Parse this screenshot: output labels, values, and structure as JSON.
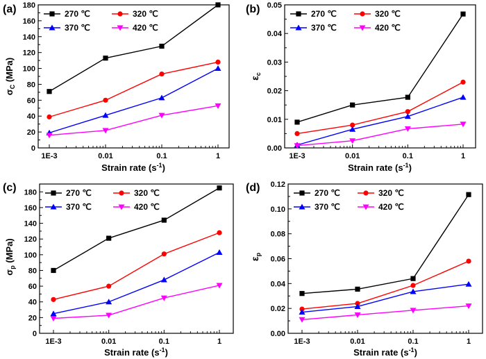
{
  "chart_data": [
    {
      "type": "line",
      "panel_label": "(a)",
      "x": [
        "1E-3",
        "0.01",
        "0.1",
        "1"
      ],
      "x_scale": "log",
      "xlabel": "Strain rate (s-1)",
      "ylabel": "σC (MPa)",
      "ylim": [
        0,
        180
      ],
      "yticks": [
        0,
        20,
        40,
        60,
        80,
        100,
        120,
        140,
        160,
        180
      ],
      "ytick_labels": [
        "0",
        "20",
        "40",
        "60",
        "80",
        "100",
        "120",
        "140",
        "160",
        "180"
      ],
      "legend_placement": "top-left",
      "series": [
        {
          "name": "270 ℃",
          "color": "#000000",
          "marker": "square",
          "values": [
            71,
            113,
            128,
            180
          ]
        },
        {
          "name": "320 ℃",
          "color": "#ff0000",
          "marker": "circle",
          "values": [
            39,
            60,
            93,
            108
          ]
        },
        {
          "name": "370 ℃",
          "color": "#0000ff",
          "marker": "triangle-up",
          "values": [
            19,
            41,
            63,
            100
          ]
        },
        {
          "name": "420 ℃",
          "color": "#ff00ff",
          "marker": "triangle-down",
          "values": [
            16,
            22,
            41,
            53
          ]
        }
      ]
    },
    {
      "type": "line",
      "panel_label": "(b)",
      "x": [
        "1E-3",
        "0.01",
        "0.1",
        "1"
      ],
      "x_scale": "log",
      "xlabel": "Strain rate (s-1)",
      "ylabel": "εc",
      "ylim": [
        0,
        0.05
      ],
      "yticks": [
        0,
        0.01,
        0.02,
        0.03,
        0.04,
        0.05
      ],
      "ytick_labels": [
        "0.00",
        "0.01",
        "0.02",
        "0.03",
        "0.04",
        "0.05"
      ],
      "legend_placement": "top-left",
      "series": [
        {
          "name": "270 ℃",
          "color": "#000000",
          "marker": "square",
          "values": [
            0.009,
            0.015,
            0.0177,
            0.0468
          ]
        },
        {
          "name": "320 ℃",
          "color": "#ff0000",
          "marker": "circle",
          "values": [
            0.005,
            0.008,
            0.0127,
            0.023
          ]
        },
        {
          "name": "370 ℃",
          "color": "#0000ff",
          "marker": "triangle-up",
          "values": [
            0.001,
            0.0065,
            0.011,
            0.0177
          ]
        },
        {
          "name": "420 ℃",
          "color": "#ff00ff",
          "marker": "triangle-down",
          "values": [
            0.0008,
            0.0025,
            0.0067,
            0.0083
          ]
        }
      ]
    },
    {
      "type": "line",
      "panel_label": "(c)",
      "x": [
        "1E-3",
        "0.01",
        "0.1",
        "1"
      ],
      "x_scale": "log",
      "xlabel": "Strain rate (s-1)",
      "ylabel": "σp (MPa)",
      "ylim": [
        0,
        190
      ],
      "yticks": [
        0,
        20,
        40,
        60,
        80,
        100,
        120,
        140,
        160,
        180
      ],
      "ytick_labels": [
        "0",
        "20",
        "40",
        "60",
        "80",
        "100",
        "120",
        "140",
        "160",
        "180"
      ],
      "legend_placement": "top-left",
      "series": [
        {
          "name": "270 ℃",
          "color": "#000000",
          "marker": "square",
          "values": [
            80,
            121,
            144,
            185
          ]
        },
        {
          "name": "320 ℃",
          "color": "#ff0000",
          "marker": "circle",
          "values": [
            43,
            60,
            101,
            128
          ]
        },
        {
          "name": "370 ℃",
          "color": "#0000ff",
          "marker": "triangle-up",
          "values": [
            25,
            40,
            68,
            103
          ]
        },
        {
          "name": "420 ℃",
          "color": "#ff00ff",
          "marker": "triangle-down",
          "values": [
            19,
            23,
            45,
            61
          ]
        }
      ]
    },
    {
      "type": "line",
      "panel_label": "(d)",
      "x": [
        "1E-3",
        "0.01",
        "0.1",
        "1"
      ],
      "x_scale": "log",
      "xlabel": "Strain rate (s-1)",
      "ylabel": "εp",
      "ylim": [
        0,
        0.12
      ],
      "yticks": [
        0,
        0.02,
        0.04,
        0.06,
        0.08,
        0.1,
        0.12
      ],
      "ytick_labels": [
        "0.00",
        "0.02",
        "0.04",
        "0.06",
        "0.08",
        "0.10",
        "0.12"
      ],
      "legend_placement": "top-left",
      "series": [
        {
          "name": "270 ℃",
          "color": "#000000",
          "marker": "square",
          "values": [
            0.032,
            0.0355,
            0.044,
            0.1115
          ]
        },
        {
          "name": "320 ℃",
          "color": "#ff0000",
          "marker": "circle",
          "values": [
            0.0195,
            0.024,
            0.0385,
            0.058
          ]
        },
        {
          "name": "370 ℃",
          "color": "#0000ff",
          "marker": "triangle-up",
          "values": [
            0.017,
            0.0215,
            0.0335,
            0.0395
          ]
        },
        {
          "name": "420 ℃",
          "color": "#ff00ff",
          "marker": "triangle-down",
          "values": [
            0.011,
            0.0148,
            0.0185,
            0.022
          ]
        }
      ]
    }
  ]
}
